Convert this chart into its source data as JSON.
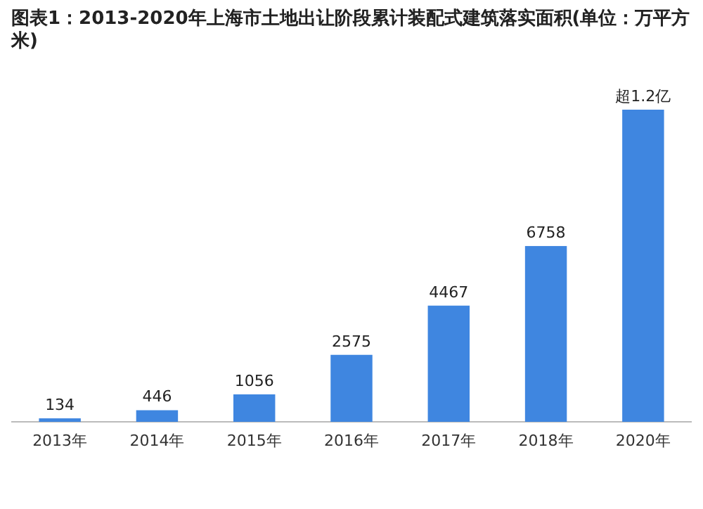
{
  "chart_data": {
    "type": "bar",
    "title": "图表1：2013-2020年上海市土地出让阶段累计装配式建筑落实面积(单位：万平方米)",
    "categories": [
      "2013年",
      "2014年",
      "2015年",
      "2016年",
      "2017年",
      "2018年",
      "2020年"
    ],
    "values": [
      134,
      446,
      1056,
      2575,
      4467,
      6758,
      12000
    ],
    "value_labels": [
      "134",
      "446",
      "1056",
      "2575",
      "4467",
      "6758",
      "超1.2亿"
    ],
    "color": "#3f86e0"
  }
}
